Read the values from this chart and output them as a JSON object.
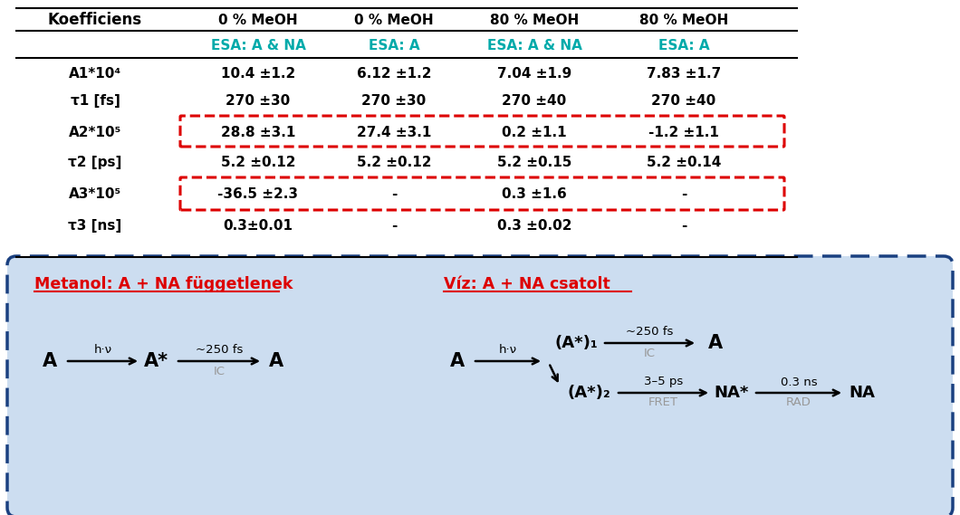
{
  "bg_color": "#ffffff",
  "table_header_row1": [
    "Koefficiens",
    "0 % MeOH",
    "0 % MeOH",
    "80 % MeOH",
    "80 % MeOH"
  ],
  "table_header_row2": [
    "",
    "ESA: A & NA",
    "ESA: A",
    "ESA: A & NA",
    "ESA: A"
  ],
  "table_data": [
    [
      "A1*10⁴",
      "10.4 ±1.2",
      "6.12 ±1.2",
      "7.04 ±1.9",
      "7.83 ±1.7"
    ],
    [
      "τ1 [fs]",
      "270 ±30",
      "270 ±30",
      "270 ±40",
      "270 ±40"
    ],
    [
      "A2*10⁵",
      "28.8 ±3.1",
      "27.4 ±3.1",
      "0.2 ±1.1",
      "-1.2 ±1.1"
    ],
    [
      "τ2 [ps]",
      "5.2 ±0.12",
      "5.2 ±0.12",
      "5.2 ±0.15",
      "5.2 ±0.14"
    ],
    [
      "A3*10⁵",
      "-36.5 ±2.3",
      "-",
      "0.3 ±1.6",
      "-"
    ],
    [
      "τ3 [ns]",
      "0.3±0.01",
      "-",
      "0.3 ±0.02",
      "-"
    ]
  ],
  "teal_color": "#00AAAA",
  "red_color": "#DD0000",
  "black_color": "#000000",
  "gray_color": "#999999",
  "box_bg_color": "#CCDDF0",
  "box_border_color": "#1A4080"
}
